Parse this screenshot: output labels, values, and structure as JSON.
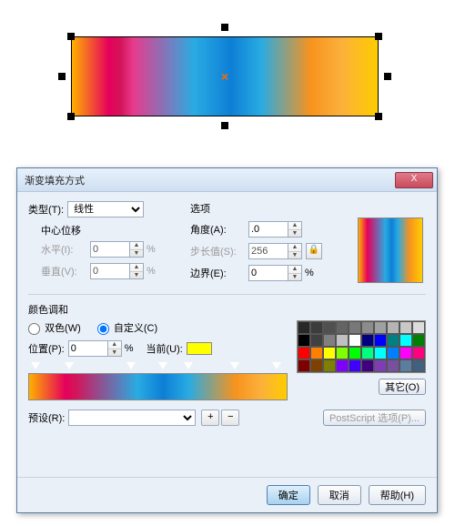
{
  "canvas": {
    "gradient": "linear-gradient(90deg,#ffb000 0%,#e6005c 12%,#d4145a 16%,#e83a8c 20%,#29abe2 40%,#0d7fd6 52%,#29abe2 62%,#f7931e 78%,#fbb03b 88%,#ffcc00 100%)",
    "center_mark": "×"
  },
  "dialog": {
    "title": "渐变填充方式",
    "close": "X",
    "type": {
      "label": "类型(T):",
      "value": "线性"
    },
    "center_offset": {
      "title": "中心位移",
      "horiz": {
        "label": "水平(I):",
        "value": "0",
        "unit": "%"
      },
      "vert": {
        "label": "垂直(V):",
        "value": "0",
        "unit": "%"
      }
    },
    "options": {
      "title": "选项",
      "angle": {
        "label": "角度(A):",
        "value": ".0"
      },
      "step": {
        "label": "步长值(S):",
        "value": "256"
      },
      "edge": {
        "label": "边界(E):",
        "value": "0",
        "unit": "%"
      }
    },
    "preview_gradient": "linear-gradient(90deg,#ffb000 0%,#e6005c 14%,#29abe2 42%,#0d7fd6 52%,#29abe2 62%,#f7931e 80%,#ffcc00 100%)",
    "harmony": {
      "title": "颜色调和",
      "two_color": "双色(W)",
      "custom": "自定义(C)",
      "position": {
        "label": "位置(P):",
        "value": "0",
        "unit": "%"
      },
      "current": {
        "label": "当前(U):",
        "color": "#ffff00"
      }
    },
    "gradbar": {
      "markers": [
        3,
        16,
        40,
        52,
        62,
        80,
        96
      ],
      "gradient": "linear-gradient(90deg,#ffb000 0%,#e6005c 14%,#d4145a 18%,#29abe2 42%,#0d7fd6 52%,#29abe2 62%,#f7931e 80%,#fbb03b 90%,#ffcc00 100%)"
    },
    "palette": [
      "#282828",
      "#3c3c3c",
      "#505050",
      "#646464",
      "#787878",
      "#8c8c8c",
      "#a0a0a0",
      "#b4b4b4",
      "#c8c8c8",
      "#dcdcdc",
      "#000000",
      "#404040",
      "#808080",
      "#c0c0c0",
      "#ffffff",
      "#000080",
      "#0000ff",
      "#008080",
      "#00ffff",
      "#008000",
      "#ff0000",
      "#ff8000",
      "#ffff00",
      "#80ff00",
      "#00ff00",
      "#00ff80",
      "#00ffff",
      "#0080ff",
      "#ff00ff",
      "#ff0080",
      "#800000",
      "#804000",
      "#808000",
      "#8000ff",
      "#4000ff",
      "#400080",
      "#803cb4",
      "#7850a0",
      "#5a7ea0",
      "#406080"
    ],
    "other_btn": "其它(O)",
    "preset": {
      "label": "预设(R):",
      "add": "+",
      "del": "−",
      "ps": "PostScript 选项(P)..."
    },
    "buttons": {
      "ok": "确定",
      "cancel": "取消",
      "help": "帮助(H)"
    }
  }
}
